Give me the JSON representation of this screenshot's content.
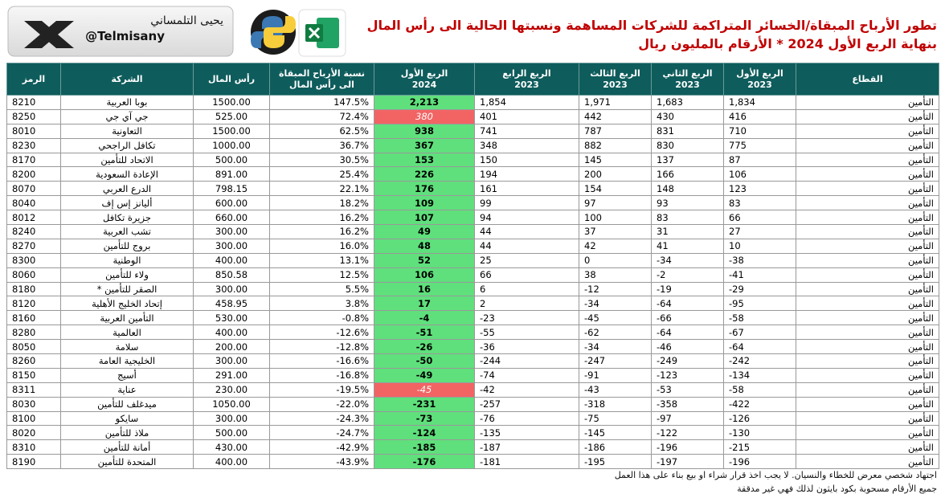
{
  "header": {
    "author": "يحيى التلمساني",
    "handle": "@Telmisany",
    "title": "تطور الأرباح المبقاة/الخسائر المتراكمة للشركات المساهمة ونسبتها الحالية الى رأس المال",
    "subtitle": "بنهاية الربع الأول 2024  * الأرقام بالمليون ريال"
  },
  "table": {
    "columns": [
      [
        "القطاع"
      ],
      [
        "الربع الأول",
        "2023"
      ],
      [
        "الربع الثاني",
        "2023"
      ],
      [
        "الربع الثالث",
        "2023"
      ],
      [
        "الربع الرابع",
        "2023"
      ],
      [
        "الربع الأول",
        "2024"
      ],
      [
        "نسبة الأرباح المبقاة",
        "الى رأس المال"
      ],
      [
        "رأس المال"
      ],
      [
        "الشركة"
      ],
      [
        "الرمز"
      ]
    ],
    "rows": [
      [
        "التأمين",
        "1,834",
        "1,683",
        "1,971",
        "1,854",
        "2,213",
        "147.5%",
        "1500.00",
        "بوبا العربية",
        "8210"
      ],
      [
        "التأمين",
        "416",
        "430",
        "442",
        "401",
        "380",
        "72.4%",
        "525.00",
        "جي آي جي",
        "8250"
      ],
      [
        "التأمين",
        "710",
        "831",
        "787",
        "741",
        "938",
        "62.5%",
        "1500.00",
        "التعاونية",
        "8010"
      ],
      [
        "التأمين",
        "775",
        "830",
        "882",
        "348",
        "367",
        "36.7%",
        "1000.00",
        "تكافل الراجحي",
        "8230"
      ],
      [
        "التأمين",
        "87",
        "137",
        "145",
        "150",
        "153",
        "30.5%",
        "500.00",
        "الاتحاد للتأمين",
        "8170"
      ],
      [
        "التأمين",
        "106",
        "166",
        "200",
        "194",
        "226",
        "25.4%",
        "891.00",
        "الإعادة السعودية",
        "8200"
      ],
      [
        "التأمين",
        "123",
        "148",
        "154",
        "161",
        "176",
        "22.1%",
        "798.15",
        "الدرع العربي",
        "8070"
      ],
      [
        "التأمين",
        "83",
        "93",
        "97",
        "99",
        "109",
        "18.2%",
        "600.00",
        "أليانز إس إف",
        "8040"
      ],
      [
        "التأمين",
        "66",
        "83",
        "100",
        "94",
        "107",
        "16.2%",
        "660.00",
        "جزيرة تكافل",
        "8012"
      ],
      [
        "التأمين",
        "27",
        "31",
        "37",
        "44",
        "49",
        "16.2%",
        "300.00",
        "تشب العربية",
        "8240"
      ],
      [
        "التأمين",
        "10",
        "41",
        "42",
        "44",
        "48",
        "16.0%",
        "300.00",
        "بروج للتأمين",
        "8270"
      ],
      [
        "التأمين",
        "-38",
        "-34",
        "0",
        "25",
        "52",
        "13.1%",
        "400.00",
        "الوطنية",
        "8300"
      ],
      [
        "التأمين",
        "-41",
        "-2",
        "38",
        "66",
        "106",
        "12.5%",
        "850.58",
        "ولاء للتأمين",
        "8060"
      ],
      [
        "التأمين",
        "-29",
        "-19",
        "-12",
        "6",
        "16",
        "5.5%",
        "300.00",
        "الصقر للتأمين *",
        "8180"
      ],
      [
        "التأمين",
        "-95",
        "-64",
        "-34",
        "2",
        "17",
        "3.8%",
        "458.95",
        "إتحاد الخليج الأهلية",
        "8120"
      ],
      [
        "التأمين",
        "-58",
        "-66",
        "-45",
        "-23",
        "-4",
        "-0.8%",
        "530.00",
        "التأمين العربية",
        "8160"
      ],
      [
        "التأمين",
        "-67",
        "-64",
        "-62",
        "-55",
        "-51",
        "-12.6%",
        "400.00",
        "العالمية",
        "8280"
      ],
      [
        "التأمين",
        "-64",
        "-46",
        "-34",
        "-36",
        "-26",
        "-12.8%",
        "200.00",
        "سلامة",
        "8050"
      ],
      [
        "التأمين",
        "-242",
        "-249",
        "-247",
        "-244",
        "-50",
        "-16.6%",
        "300.00",
        "الخليجية العامة",
        "8260"
      ],
      [
        "التأمين",
        "-134",
        "-123",
        "-91",
        "-74",
        "-49",
        "-16.8%",
        "291.00",
        "أسيج",
        "8150"
      ],
      [
        "التأمين",
        "-58",
        "-53",
        "-43",
        "-42",
        "-45",
        "-19.5%",
        "230.00",
        "عناية",
        "8311"
      ],
      [
        "التأمين",
        "-422",
        "-358",
        "-318",
        "-257",
        "-231",
        "-22.0%",
        "1050.00",
        "ميدغلف للتأمين",
        "8030"
      ],
      [
        "التأمين",
        "-126",
        "-97",
        "-75",
        "-76",
        "-73",
        "-24.3%",
        "300.00",
        "سايكو",
        "8100"
      ],
      [
        "التأمين",
        "-130",
        "-122",
        "-145",
        "-135",
        "-124",
        "-24.7%",
        "500.00",
        "ملاذ للتأمين",
        "8020"
      ],
      [
        "التأمين",
        "-215",
        "-196",
        "-186",
        "-187",
        "-185",
        "-42.9%",
        "430.00",
        "أمانة للتأمين",
        "8310"
      ],
      [
        "التأمين",
        "-196",
        "-197",
        "-195",
        "-181",
        "-176",
        "-43.9%",
        "400.00",
        "المتحدة للتأمين",
        "8190"
      ]
    ],
    "highlight": {
      "column": 5,
      "color": "#5fe07c",
      "alert_rows": [
        1,
        20
      ],
      "alert_color": "#f26464"
    }
  },
  "footer": [
    "اجتهاد شخصي معرض للخطاء والنسيان. لا يجب اخذ قرار شراء او بيع بناء على هذا العمل",
    "جميع الأرقام مسحوبة بكود بايثون لذلك فهي غير مدققة"
  ]
}
